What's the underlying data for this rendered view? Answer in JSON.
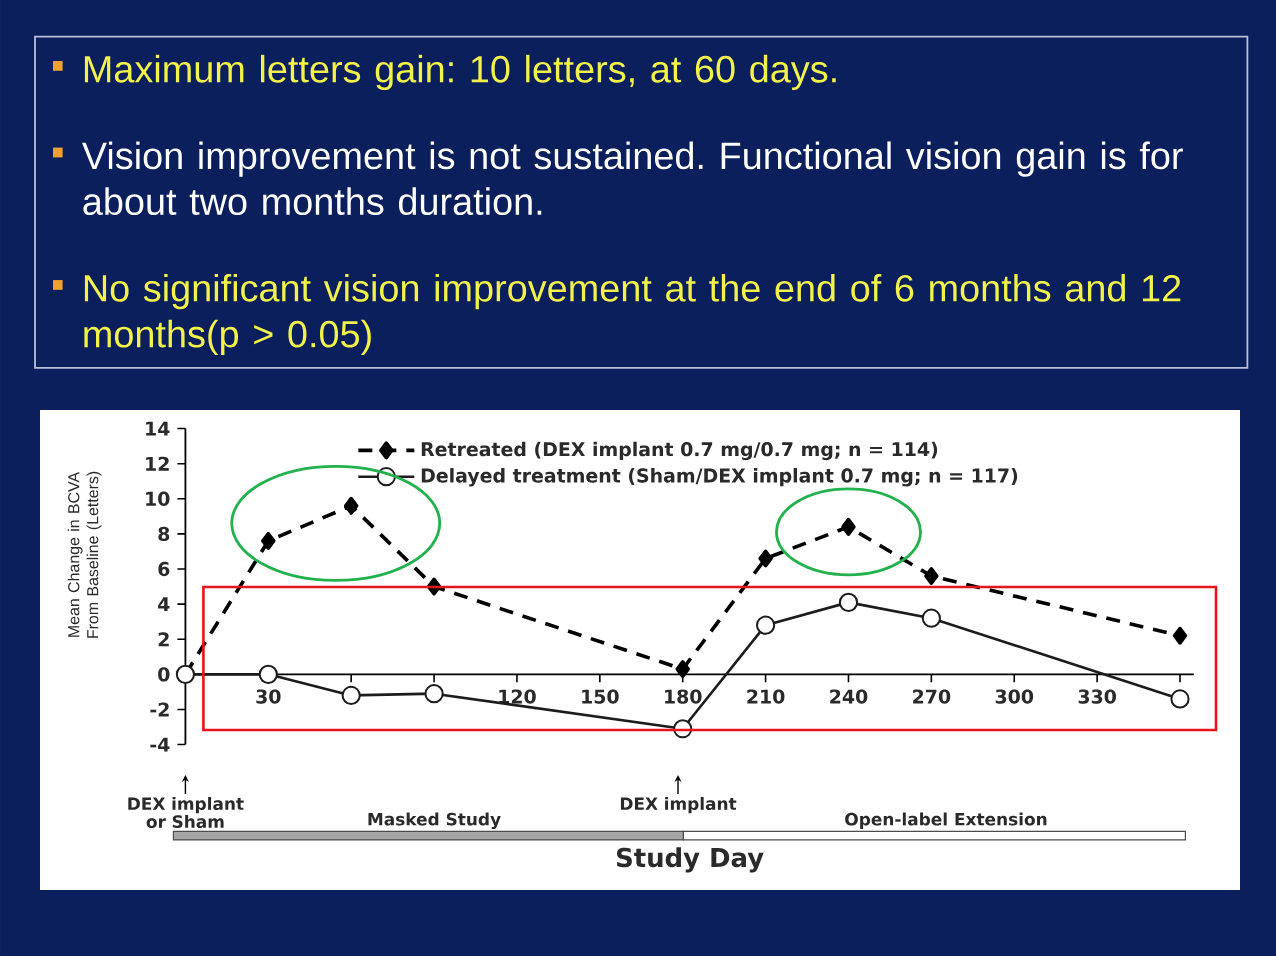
{
  "chart_data": {
    "type": "line",
    "xlabel": "Study Day",
    "ylabel": "Mean Change in BCVA From Baseline (Letters)",
    "x": [
      0,
      30,
      60,
      90,
      180,
      210,
      240,
      270,
      360
    ],
    "series": [
      {
        "name": "Retreated (DEX implant 0.7 mg/0.7 mg; n = 114)",
        "color": "#000000",
        "values": [
          0,
          7.6,
          9.6,
          5.0,
          0.3,
          6.6,
          8.4,
          5.6,
          2.2
        ],
        "marker": "diamond",
        "line_style": "dashed"
      },
      {
        "name": "Delayed treatment (Sham/DEX implant 0.7 mg; n = 117)",
        "color": "#1c1c1c",
        "values": [
          0,
          0,
          -1.2,
          -1.1,
          -3.1,
          2.8,
          4.1,
          3.2,
          -1.4
        ],
        "marker": "circle",
        "line_style": "solid"
      }
    ],
    "xlim": [
      0,
      365
    ],
    "xticks": [
      {
        "value": 0,
        "label": null
      },
      30,
      {
        "value": 60,
        "label": null
      },
      {
        "value": 90,
        "label": null
      },
      120,
      150,
      180,
      210,
      240,
      270,
      300,
      330,
      {
        "value": 360,
        "label": null
      }
    ],
    "ylim": [
      -4,
      14
    ],
    "yticks": [
      -4,
      -2,
      0,
      2,
      4,
      6,
      8,
      10,
      12,
      14
    ],
    "legend": "top",
    "annotations": [
      "Maximum letters gain: 10 letters, at 60 days.",
      "Vision improvement is not sustained. Functional vision gain is for about two months duration.",
      "No significant vision improvement at the end of 6 months and 12 months(p > 0.05)",
      "DEX implant or Sham",
      "DEX implant",
      "Masked Study",
      "Open-label Extension"
    ]
  }
}
